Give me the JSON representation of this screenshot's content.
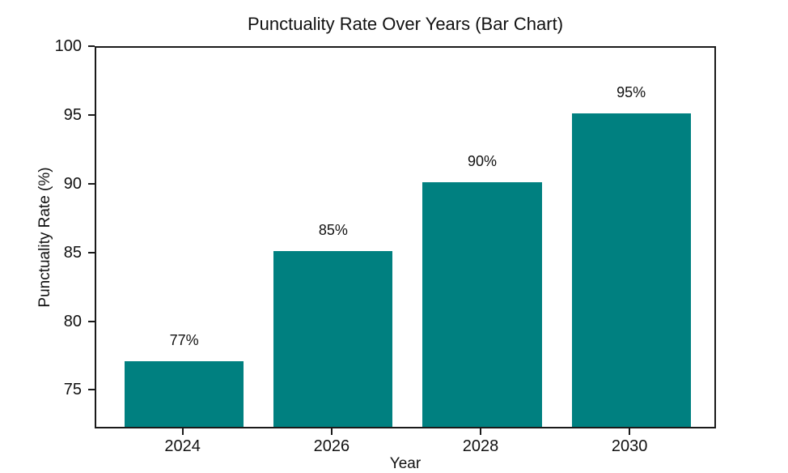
{
  "figure": {
    "background": "#ffffff",
    "text_color": "#111111",
    "axis_color": "#1a1a1a"
  },
  "chart_data": {
    "type": "bar",
    "title": "Punctuality Rate Over Years (Bar Chart)",
    "xlabel": "Year",
    "ylabel": "Punctuality Rate (%)",
    "categories": [
      "2024",
      "2026",
      "2028",
      "2030"
    ],
    "values": [
      77,
      85,
      90,
      95
    ],
    "bar_labels": [
      "77%",
      "85%",
      "90%",
      "95%"
    ],
    "bar_color": "#008080",
    "ylim": [
      72.2,
      100
    ],
    "yticks": [
      75,
      80,
      85,
      90,
      95,
      100
    ],
    "xlim": [
      -0.59,
      3.58
    ],
    "bar_width": 0.8,
    "grid": false,
    "legend": false
  }
}
